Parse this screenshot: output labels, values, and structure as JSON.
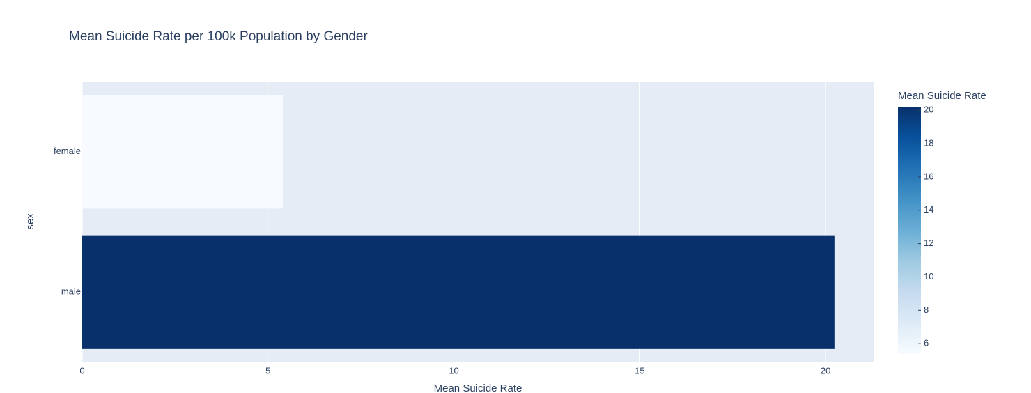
{
  "chart_data": {
    "type": "barh",
    "title": "Mean Suicide Rate per 100k Population by Gender",
    "xlabel": "Mean Suicide Rate",
    "ylabel": "sex",
    "categories": [
      "female",
      "male"
    ],
    "values": [
      5.38,
      20.22
    ],
    "xlim": [
      0,
      21.31
    ],
    "xticks": [
      0,
      5,
      10,
      15,
      20
    ],
    "grid": true,
    "colorbar_title": "Mean Suicide Rate",
    "colorbar_ticks": [
      6,
      8,
      10,
      12,
      14,
      16,
      18,
      20
    ],
    "colorscale": [
      "#f7fbff",
      "#deebf7",
      "#c6dbef",
      "#9ecae1",
      "#6baed6",
      "#4292c6",
      "#2171b5",
      "#08519c",
      "#08306b"
    ]
  }
}
